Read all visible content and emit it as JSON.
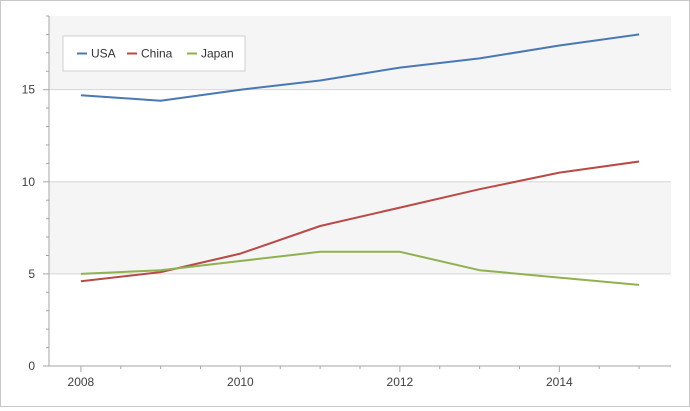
{
  "chart_data": {
    "type": "line",
    "x": [
      2008,
      2009,
      2010,
      2011,
      2012,
      2013,
      2014,
      2015
    ],
    "xlim": [
      2007.6,
      2015.4
    ],
    "ylim": [
      0,
      19
    ],
    "x_ticks": [
      2008,
      2010,
      2012,
      2014
    ],
    "y_ticks": [
      0,
      5,
      10,
      15
    ],
    "grid": "horizontal",
    "alternating_bands": true,
    "legend_position": "top-left",
    "series": [
      {
        "name": "USA",
        "color": "#4a78b4",
        "values": [
          14.7,
          14.4,
          15.0,
          15.5,
          16.2,
          16.7,
          17.4,
          18.0
        ]
      },
      {
        "name": "China",
        "color": "#b84a47",
        "values": [
          4.6,
          5.1,
          6.1,
          7.6,
          8.6,
          9.6,
          10.5,
          11.1
        ]
      },
      {
        "name": "Japan",
        "color": "#8fb14f",
        "values": [
          5.0,
          5.2,
          5.7,
          6.2,
          6.2,
          5.2,
          4.8,
          4.4
        ]
      }
    ]
  }
}
